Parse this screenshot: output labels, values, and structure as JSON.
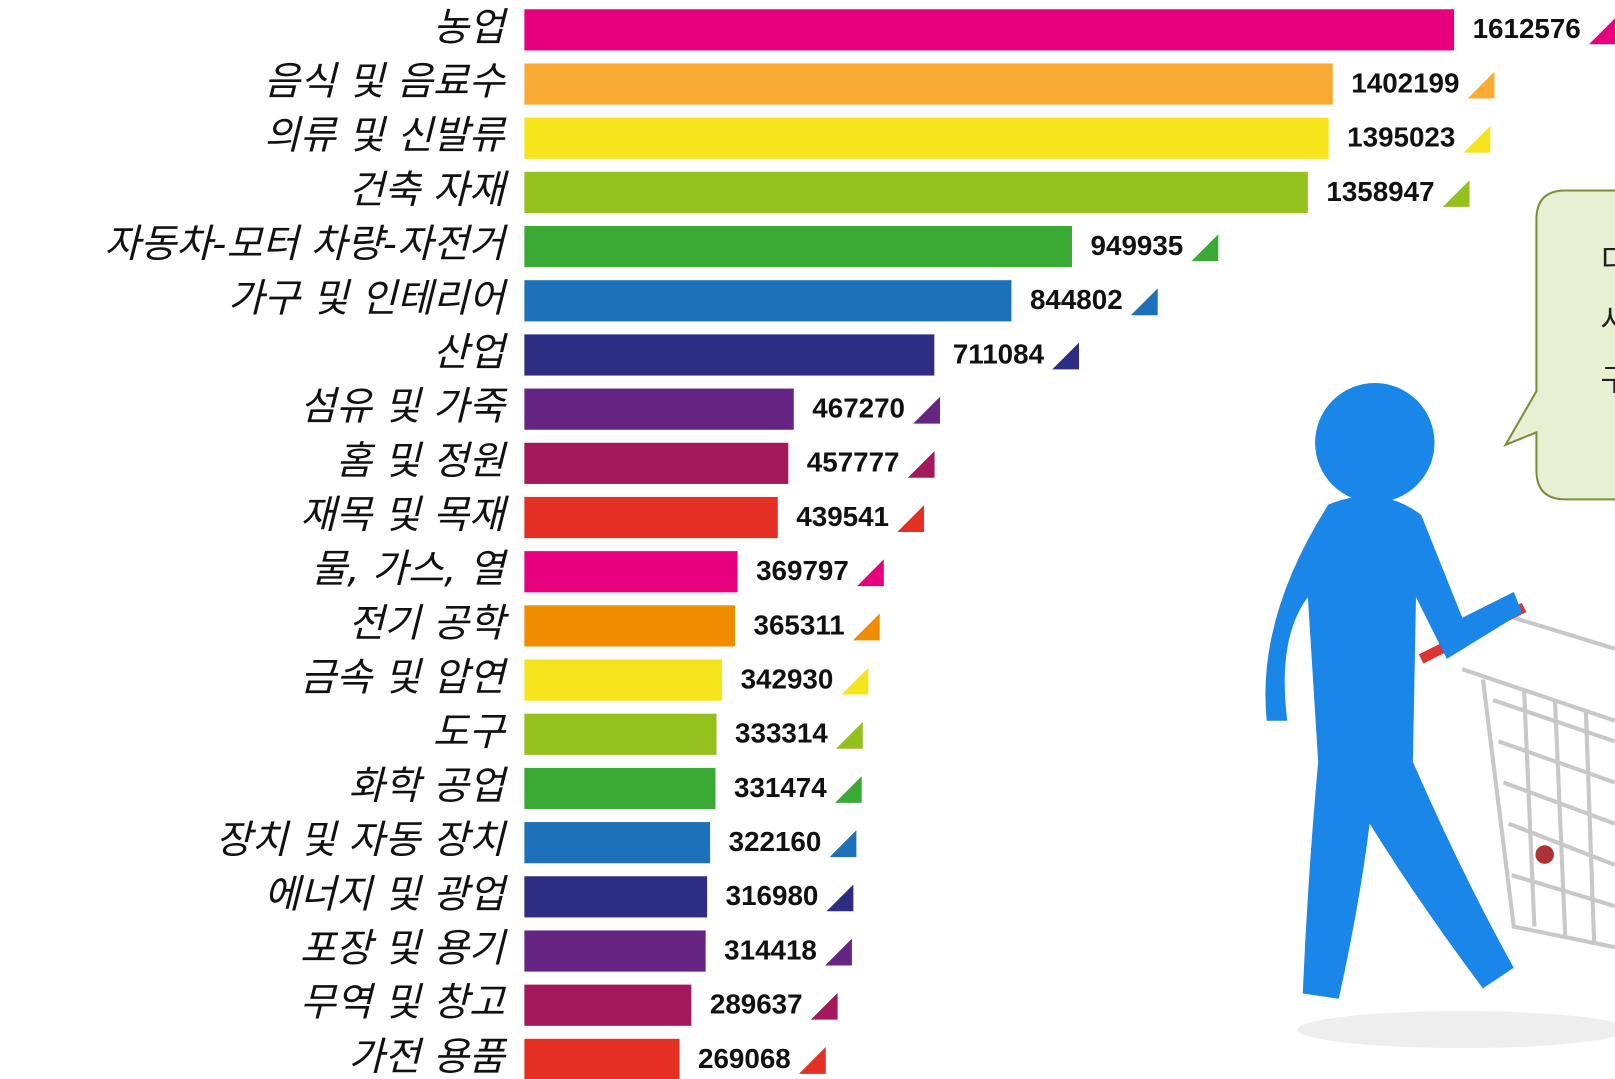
{
  "chart_data": {
    "type": "barh",
    "categories": [
      "농업",
      "음식 및 음료수",
      "의류 및 신발류",
      "건축 자재",
      "자동차-모터 차량-자전거",
      "가구 및 인테리어",
      "산업",
      "섬유 및 가죽",
      "홈 및 정원",
      "재목 및 목재",
      "물, 가스, 열",
      "전기 공학",
      "금속 및 압연",
      "도구",
      "화학 공업",
      "장치 및 자동 장치",
      "에너지 및 광업",
      "포장 및 용기",
      "무역 및 창고",
      "가전 용품"
    ],
    "values": [
      1612576,
      1402199,
      1395023,
      1358947,
      949935,
      844802,
      711084,
      467270,
      457777,
      439541,
      369797,
      365311,
      342930,
      333314,
      331474,
      322160,
      316980,
      314418,
      289637,
      269068
    ],
    "colors": [
      "#e6007e",
      "#f7ab35",
      "#f6e51c",
      "#95c11f",
      "#3aaa35",
      "#1d71b8",
      "#2d2e83",
      "#662483",
      "#a3195b",
      "#e42f24",
      "#e6007e",
      "#ef8c00",
      "#f6e51c",
      "#95c11f",
      "#3aaa35",
      "#1d71b8",
      "#2d2e83",
      "#662483",
      "#a3195b",
      "#e42f24"
    ]
  },
  "bubble_text": [
    "디",
    "사",
    "구"
  ]
}
